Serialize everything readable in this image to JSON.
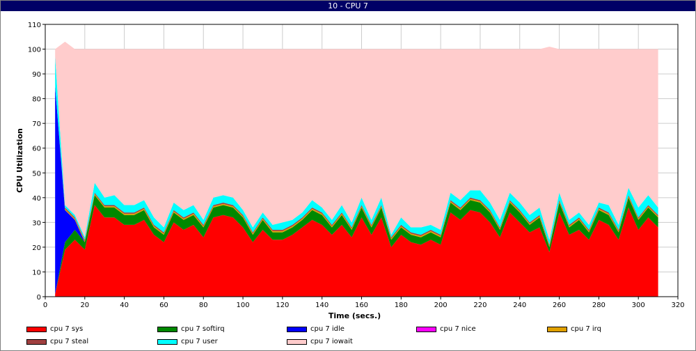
{
  "window": {
    "title": "10 - CPU 7"
  },
  "chart_data": {
    "type": "area",
    "stacked": true,
    "title": "10 - CPU 7",
    "xlabel": "Time (secs.)",
    "ylabel": "CPU Utilization",
    "xlim": [
      0,
      320
    ],
    "ylim": [
      0,
      110
    ],
    "xticks": [
      0,
      20,
      40,
      60,
      80,
      100,
      120,
      140,
      160,
      180,
      200,
      220,
      240,
      260,
      280,
      300,
      320
    ],
    "yticks": [
      0,
      10,
      20,
      30,
      40,
      50,
      60,
      70,
      80,
      90,
      100,
      110
    ],
    "grid": true,
    "legend_position": "bottom",
    "x": [
      5,
      10,
      15,
      20,
      25,
      30,
      35,
      40,
      45,
      50,
      55,
      60,
      65,
      70,
      75,
      80,
      85,
      90,
      95,
      100,
      105,
      110,
      115,
      120,
      125,
      130,
      135,
      140,
      145,
      150,
      155,
      160,
      165,
      170,
      175,
      180,
      185,
      190,
      195,
      200,
      205,
      210,
      215,
      220,
      225,
      230,
      235,
      240,
      245,
      250,
      255,
      260,
      265,
      270,
      275,
      280,
      285,
      290,
      295,
      300,
      305,
      310
    ],
    "series": [
      {
        "name": "cpu 7 sys",
        "color": "#ff0000",
        "values": [
          1,
          19,
          23,
          19,
          37,
          32,
          32,
          29,
          29,
          31,
          25,
          22,
          30,
          27,
          29,
          24,
          32,
          33,
          32,
          28,
          22,
          27,
          23,
          23,
          25,
          28,
          31,
          29,
          25,
          29,
          24,
          32,
          25,
          32,
          20,
          25,
          22,
          21,
          23,
          21,
          34,
          31,
          35,
          34,
          30,
          24,
          34,
          30,
          26,
          28,
          18,
          34,
          25,
          27,
          23,
          31,
          29,
          23,
          36,
          27,
          32,
          28
        ]
      },
      {
        "name": "cpu 7 softirq",
        "color": "#008800",
        "values": [
          0,
          3,
          4,
          3,
          4,
          4,
          4,
          4,
          4,
          4,
          3,
          3,
          4,
          4,
          4,
          4,
          4,
          4,
          4,
          4,
          3,
          4,
          3,
          3,
          3,
          3,
          4,
          4,
          3,
          4,
          3,
          4,
          3,
          4,
          3,
          3,
          3,
          3,
          3,
          3,
          4,
          4,
          4,
          4,
          4,
          3,
          4,
          4,
          3,
          4,
          2,
          4,
          3,
          4,
          3,
          4,
          4,
          3,
          4,
          4,
          4,
          4
        ]
      },
      {
        "name": "cpu 7 idle",
        "color": "#0000ff",
        "values": [
          84,
          13,
          4,
          0,
          0,
          0,
          0,
          0,
          0,
          0,
          0,
          0,
          0,
          0,
          0,
          0,
          0,
          0,
          0,
          0,
          0,
          0,
          0,
          0,
          0,
          0,
          0,
          0,
          0,
          0,
          0,
          0,
          0,
          0,
          0,
          0,
          0,
          0,
          0,
          0,
          0,
          0,
          0,
          0,
          0,
          0,
          0,
          0,
          0,
          0,
          0,
          0,
          0,
          0,
          0,
          0,
          0,
          0,
          0,
          0,
          0,
          0
        ]
      },
      {
        "name": "cpu 7 nice",
        "color": "#ff00ff",
        "values": [
          0,
          0,
          0,
          0,
          0,
          0,
          0,
          0,
          0,
          0,
          0,
          0,
          0,
          0,
          0,
          0,
          0,
          0,
          0,
          0,
          0,
          0,
          0,
          0,
          0,
          0,
          0,
          0,
          0,
          0,
          0,
          0,
          0,
          0,
          0,
          0,
          0,
          0,
          0,
          0,
          0,
          0,
          0,
          0,
          0,
          0,
          0,
          0,
          0,
          0,
          0,
          0,
          0,
          0,
          0,
          0,
          0,
          0,
          0,
          0,
          0,
          0
        ]
      },
      {
        "name": "cpu 7 irq",
        "color": "#e0a000",
        "values": [
          0,
          0.5,
          0.5,
          0.5,
          0.5,
          0.5,
          0.5,
          0.5,
          0.5,
          0.5,
          0.5,
          0.5,
          0.5,
          0.5,
          0.5,
          0.5,
          0.5,
          0.5,
          0.5,
          0.5,
          0.5,
          0.5,
          0.5,
          0.5,
          0.5,
          0.5,
          0.5,
          0.5,
          0.5,
          0.5,
          0.5,
          0.5,
          0.5,
          0.5,
          0.5,
          0.5,
          0.5,
          0.5,
          0.5,
          0.5,
          0.5,
          0.5,
          0.5,
          0.5,
          0.5,
          0.5,
          0.5,
          0.5,
          0.5,
          0.5,
          0.5,
          0.5,
          0.5,
          0.5,
          0.5,
          0.5,
          0.5,
          0.5,
          0.5,
          0.5,
          0.5,
          0.5
        ]
      },
      {
        "name": "cpu 7 steal",
        "color": "#a04040",
        "values": [
          0,
          0.5,
          0.5,
          0.5,
          0.5,
          0.5,
          0.5,
          0.5,
          0.5,
          0.5,
          0.5,
          0.5,
          0.5,
          0.5,
          0.5,
          0.5,
          0.5,
          0.5,
          0.5,
          0.5,
          0.5,
          0.5,
          0.5,
          0.5,
          0.5,
          0.5,
          0.5,
          0.5,
          0.5,
          0.5,
          0.5,
          0.5,
          0.5,
          0.5,
          0.5,
          0.5,
          0.5,
          0.5,
          0.5,
          0.5,
          0.5,
          0.5,
          0.5,
          0.5,
          0.5,
          0.5,
          0.5,
          0.5,
          0.5,
          0.5,
          0.5,
          0.5,
          0.5,
          0.5,
          0.5,
          0.5,
          0.5,
          0.5,
          0.5,
          0.5,
          0.5,
          0.5
        ]
      },
      {
        "name": "cpu 7 user",
        "color": "#00ffff",
        "values": [
          12,
          1,
          1,
          1,
          4,
          3,
          4,
          3,
          3,
          3,
          3,
          2,
          3,
          3,
          3,
          2,
          3,
          3,
          3,
          2,
          2,
          2,
          2,
          3,
          2,
          2,
          3,
          2,
          2,
          3,
          2,
          3,
          2,
          3,
          1,
          3,
          2,
          3,
          2,
          2,
          3,
          3,
          3,
          4,
          3,
          3,
          3,
          3,
          3,
          3,
          2,
          3,
          2,
          2,
          2,
          2,
          3,
          2,
          3,
          4,
          4,
          3
        ]
      },
      {
        "name": "cpu 7 iowait",
        "color": "#ffcccc",
        "values": [
          3,
          66,
          67,
          76,
          54,
          60,
          59,
          63,
          63,
          61,
          68,
          72,
          62,
          65,
          63,
          69,
          60,
          59,
          60,
          65,
          72,
          66,
          71,
          70,
          69,
          66,
          61,
          64,
          69,
          63,
          70,
          60,
          69,
          60,
          75,
          68,
          72,
          72,
          71,
          73,
          58,
          61,
          57,
          57,
          62,
          69,
          58,
          62,
          67,
          64,
          78,
          58,
          69,
          66,
          71,
          62,
          63,
          71,
          56,
          64,
          59,
          64
        ]
      }
    ]
  }
}
